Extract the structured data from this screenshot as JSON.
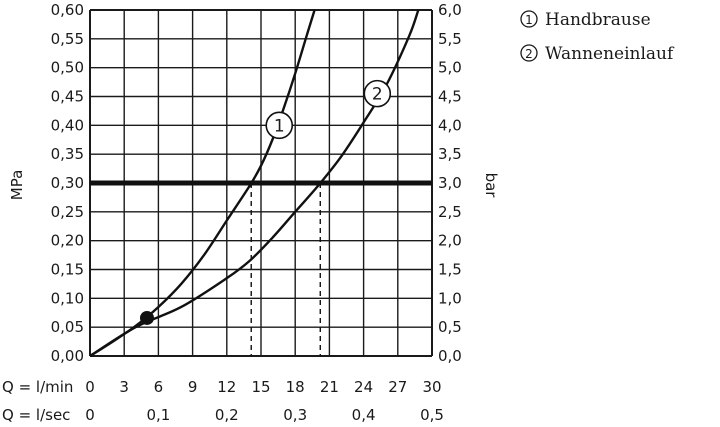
{
  "chart_data": {
    "type": "line",
    "ylabel_left": "MPa",
    "ylabel_right": "bar",
    "x_rows": [
      {
        "label": "Q = l/min",
        "ticks": [
          "0",
          "3",
          "6",
          "9",
          "12",
          "15",
          "18",
          "21",
          "24",
          "27",
          "30"
        ]
      },
      {
        "label": "Q = l/sec",
        "ticks": [
          "0",
          "0,1",
          "0,2",
          "0,3",
          "0,4",
          "0,5"
        ]
      }
    ],
    "y_left_ticks": [
      "0,00",
      "0,05",
      "0,10",
      "0,15",
      "0,20",
      "0,25",
      "0,30",
      "0,35",
      "0,40",
      "0,45",
      "0,50",
      "0,55",
      "0,60"
    ],
    "y_right_ticks": [
      "0,0",
      "0,5",
      "1,0",
      "1,5",
      "2,0",
      "2,5",
      "3,0",
      "3,5",
      "4,0",
      "4,5",
      "5,0",
      "5,5",
      "6,0"
    ],
    "xlim": [
      0,
      30
    ],
    "ylim": [
      0,
      0.6
    ],
    "grid": true,
    "reference_line": {
      "y": 0.3
    },
    "marker_point": {
      "x": 5.0,
      "y": 0.066
    },
    "series": [
      {
        "name": "Handbrause",
        "number": "1",
        "x": [
          0,
          2,
          4,
          6,
          8,
          10,
          12,
          14,
          15,
          16,
          17,
          18,
          19,
          19.7
        ],
        "y": [
          0,
          0.025,
          0.052,
          0.085,
          0.125,
          0.175,
          0.235,
          0.295,
          0.33,
          0.375,
          0.43,
          0.49,
          0.555,
          0.6
        ]
      },
      {
        "name": "Wanneneinlauf",
        "number": "2",
        "x": [
          0,
          4,
          8,
          12,
          14,
          16,
          18,
          20,
          22,
          24,
          26,
          28,
          28.8
        ],
        "y": [
          0,
          0.05,
          0.085,
          0.135,
          0.165,
          0.205,
          0.25,
          0.295,
          0.345,
          0.405,
          0.47,
          0.555,
          0.6
        ]
      }
    ],
    "annotations": [
      {
        "text": "1",
        "x": 16.6,
        "y": 0.4
      },
      {
        "text": "2",
        "x": 25.2,
        "y": 0.455
      }
    ]
  },
  "legend": [
    {
      "number": "1",
      "label": "Handbrause"
    },
    {
      "number": "2",
      "label": "Wanneneinlauf"
    }
  ]
}
